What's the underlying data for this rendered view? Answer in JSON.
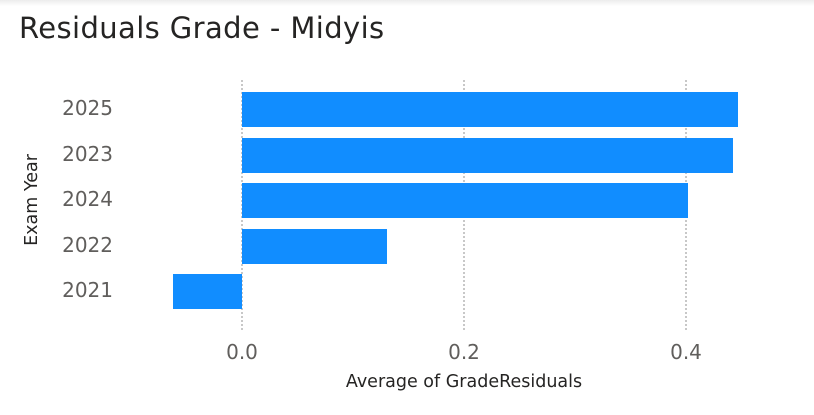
{
  "visual": {
    "title": "Residuals Grade - Midyis"
  },
  "chart_data": {
    "type": "bar",
    "orientation": "horizontal",
    "title": "Residuals Grade - Midyis",
    "xlabel": "Average of GradeResiduals",
    "ylabel": "Exam Year",
    "categories": [
      "2025",
      "2023",
      "2024",
      "2022",
      "2021"
    ],
    "values": [
      0.447,
      0.442,
      0.402,
      0.131,
      -0.062
    ],
    "series": [
      {
        "name": "Average of GradeResiduals",
        "color": "#118dff",
        "values": [
          0.447,
          0.442,
          0.402,
          0.131,
          -0.062
        ]
      }
    ],
    "x_ticks": [
      "0.0",
      "0.2",
      "0.4"
    ],
    "xlim": [
      -0.09,
      0.5
    ],
    "grid": {
      "x": true,
      "style": "dotted",
      "color": "#c8c8c8"
    },
    "legend": "none",
    "bar_color": "#118dff"
  },
  "axes": {
    "x_title": "Average of GradeResiduals",
    "y_title": "Exam Year",
    "x_ticks": [
      "0.0",
      "0.2",
      "0.4"
    ],
    "y_ticks": [
      "2025",
      "2023",
      "2024",
      "2022",
      "2021"
    ]
  }
}
